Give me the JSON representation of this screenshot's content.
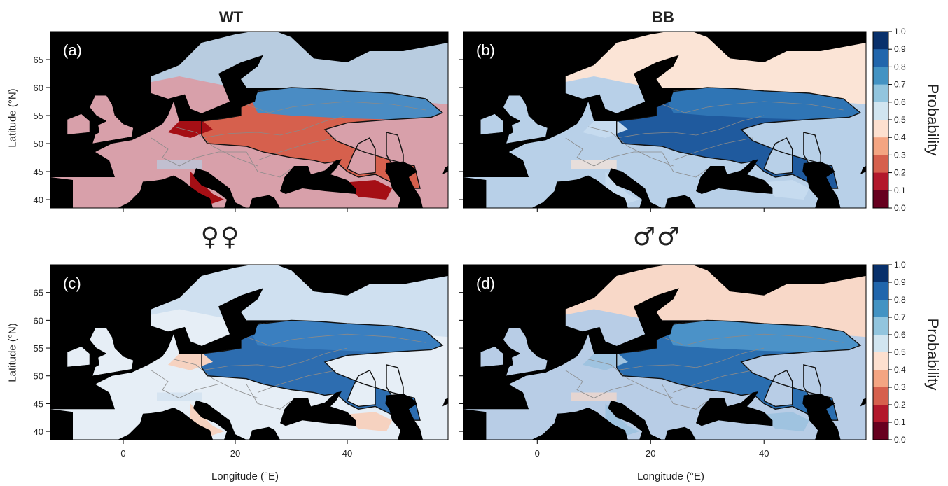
{
  "columns": {
    "left": "WT",
    "right": "BB"
  },
  "sex_symbols": {
    "female": "♀♀",
    "male": "♂♂"
  },
  "axes": {
    "ylabel": "Latitude (°N)",
    "xlabel": "Longitude (°E)",
    "lat_ticks": [
      "65",
      "60",
      "55",
      "50",
      "45",
      "40"
    ],
    "lon_ticks": [
      "0",
      "20",
      "40"
    ],
    "lat_range": [
      38.5,
      70
    ],
    "lon_range": [
      -13,
      58
    ]
  },
  "colorbar": {
    "label": "Probability",
    "ticks": [
      "1.0",
      "0.9",
      "0.8",
      "0.7",
      "0.6",
      "0.5",
      "0.4",
      "0.3",
      "0.2",
      "0.1",
      "0.0"
    ],
    "colors": [
      "#08306b",
      "#2166ac",
      "#4393c3",
      "#92c5de",
      "#d1e5f0",
      "#fde0cf",
      "#f4a582",
      "#d6604d",
      "#b2182b",
      "#67001f"
    ]
  },
  "panels": [
    {
      "label": "(a)",
      "background": "#d8a0aa",
      "north": "#b8cce0",
      "range_inner": "#4a8cc4",
      "range_south": "#d6604d",
      "hotspots": "#a50f15"
    },
    {
      "label": "(b)",
      "background": "#b8d0e8",
      "north": "#fbe4d6",
      "range_inner": "#2f75b5",
      "range_south": "#1f5a9e",
      "hotspots": "#c6dbef"
    },
    {
      "label": "(c)",
      "background": "#e6eef6",
      "north": "#cfe0f0",
      "range_inner": "#3a7fc0",
      "range_south": "#2d6db0",
      "hotspots": "#f6d2c0"
    },
    {
      "label": "(d)",
      "background": "#b8cde6",
      "north": "#f8d8c8",
      "range_inner": "#4b92c8",
      "range_south": "#2a6eb0",
      "hotspots": "#9fc3e0"
    }
  ]
}
